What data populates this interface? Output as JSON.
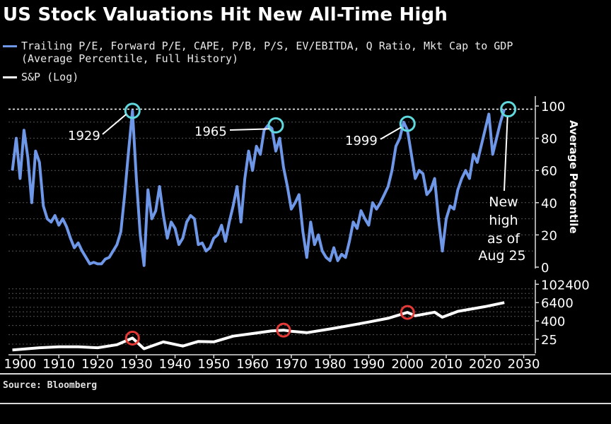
{
  "title": "US Stock Valuations Hit New All-Time High",
  "legend": [
    {
      "label": "Trailing P/E, Forward P/E, CAPE, P/B, P/S, EV/EBITDA, Q Ratio, Mkt Cap to GDP",
      "color": "#6f97e8"
    },
    {
      "label": "(Average Percentile, Full History)",
      "color": ""
    },
    {
      "label": "S&P (Log)",
      "color": "#ffffff"
    }
  ],
  "source": "Source: Bloomberg",
  "chart_data": [
    {
      "type": "line",
      "series": [
        {
          "name": "Trailing P/E, Forward P/E, CAPE, P/B, P/S, EV/EBITDA, Q Ratio, Mkt Cap to GDP (Average Percentile, Full History)",
          "color": "#6f97e8",
          "x": [
            1898,
            1899,
            1900,
            1901,
            1902,
            1903,
            1904,
            1905,
            1906,
            1907,
            1908,
            1909,
            1910,
            1911,
            1912,
            1913,
            1914,
            1915,
            1916,
            1917,
            1918,
            1919,
            1920,
            1921,
            1922,
            1923,
            1924,
            1925,
            1926,
            1927,
            1928,
            1929,
            1930,
            1931,
            1932,
            1933,
            1934,
            1935,
            1936,
            1937,
            1938,
            1939,
            1940,
            1941,
            1942,
            1943,
            1944,
            1945,
            1946,
            1947,
            1948,
            1949,
            1950,
            1951,
            1952,
            1953,
            1954,
            1955,
            1956,
            1957,
            1958,
            1959,
            1960,
            1961,
            1962,
            1963,
            1964,
            1965,
            1966,
            1967,
            1968,
            1969,
            1970,
            1971,
            1972,
            1973,
            1974,
            1975,
            1976,
            1977,
            1978,
            1979,
            1980,
            1981,
            1982,
            1983,
            1984,
            1985,
            1986,
            1987,
            1988,
            1989,
            1990,
            1991,
            1992,
            1993,
            1994,
            1995,
            1996,
            1997,
            1998,
            1999,
            2000,
            2001,
            2002,
            2003,
            2004,
            2005,
            2006,
            2007,
            2008,
            2009,
            2010,
            2011,
            2012,
            2013,
            2014,
            2015,
            2016,
            2017,
            2018,
            2019,
            2020,
            2021,
            2022,
            2023,
            2024,
            2025
          ],
          "values": [
            60,
            80,
            55,
            85,
            68,
            40,
            72,
            65,
            38,
            30,
            28,
            32,
            26,
            30,
            25,
            18,
            12,
            15,
            10,
            6,
            2,
            3,
            2,
            2,
            5,
            6,
            10,
            14,
            22,
            45,
            72,
            97,
            55,
            20,
            1,
            48,
            30,
            35,
            50,
            32,
            18,
            28,
            24,
            14,
            18,
            28,
            32,
            30,
            14,
            15,
            10,
            12,
            18,
            20,
            26,
            16,
            28,
            38,
            50,
            28,
            55,
            72,
            60,
            75,
            70,
            85,
            88,
            86,
            72,
            80,
            62,
            50,
            36,
            40,
            45,
            22,
            6,
            28,
            14,
            20,
            10,
            6,
            4,
            12,
            4,
            8,
            6,
            16,
            28,
            24,
            35,
            30,
            26,
            40,
            36,
            40,
            45,
            50,
            60,
            75,
            80,
            90,
            85,
            70,
            55,
            60,
            58,
            45,
            48,
            55,
            30,
            10,
            30,
            38,
            36,
            48,
            55,
            60,
            55,
            70,
            65,
            75,
            85,
            95,
            70,
            80,
            90,
            98
          ]
        }
      ],
      "ylim": [
        0,
        100
      ],
      "yticks": [
        0,
        20,
        40,
        60,
        80,
        100
      ],
      "ylabel": "Average Percentile",
      "reference_line": 98,
      "peaks": [
        {
          "label": "1929",
          "x": 1929,
          "y": 97
        },
        {
          "label": "1965",
          "x": 1966,
          "y": 88
        },
        {
          "label": "1999",
          "x": 2000,
          "y": 89
        },
        {
          "label": "",
          "x": 2026,
          "y": 98
        }
      ],
      "annotation": [
        "New",
        "high",
        "as of",
        "Aug 25"
      ],
      "grid": true
    },
    {
      "type": "line",
      "series": [
        {
          "name": "S&P (Log)",
          "color": "#ffffff",
          "x": [
            1898,
            1905,
            1910,
            1915,
            1920,
            1925,
            1929,
            1932,
            1937,
            1942,
            1946,
            1950,
            1955,
            1960,
            1965,
            1968,
            1970,
            1974,
            1980,
            1985,
            1990,
            1995,
            2000,
            2002,
            2007,
            2009,
            2013,
            2020,
            2025
          ],
          "values": [
            5,
            7,
            8,
            8,
            7,
            11,
            30,
            6,
            17,
            9,
            18,
            17,
            40,
            60,
            90,
            100,
            85,
            68,
            120,
            200,
            340,
            600,
            1450,
            880,
            1500,
            700,
            1700,
            3500,
            6400
          ]
        }
      ],
      "yscale": "log",
      "ylim": [
        3,
        200000
      ],
      "yticks": [
        25,
        400,
        6400,
        102400
      ],
      "highlights": [
        1929,
        1968,
        2000
      ]
    }
  ],
  "xaxis": {
    "ticks": [
      1900,
      1910,
      1920,
      1930,
      1940,
      1950,
      1960,
      1970,
      1980,
      1990,
      2000,
      2010,
      2020,
      2030
    ],
    "xlim": [
      1897,
      2033
    ]
  }
}
